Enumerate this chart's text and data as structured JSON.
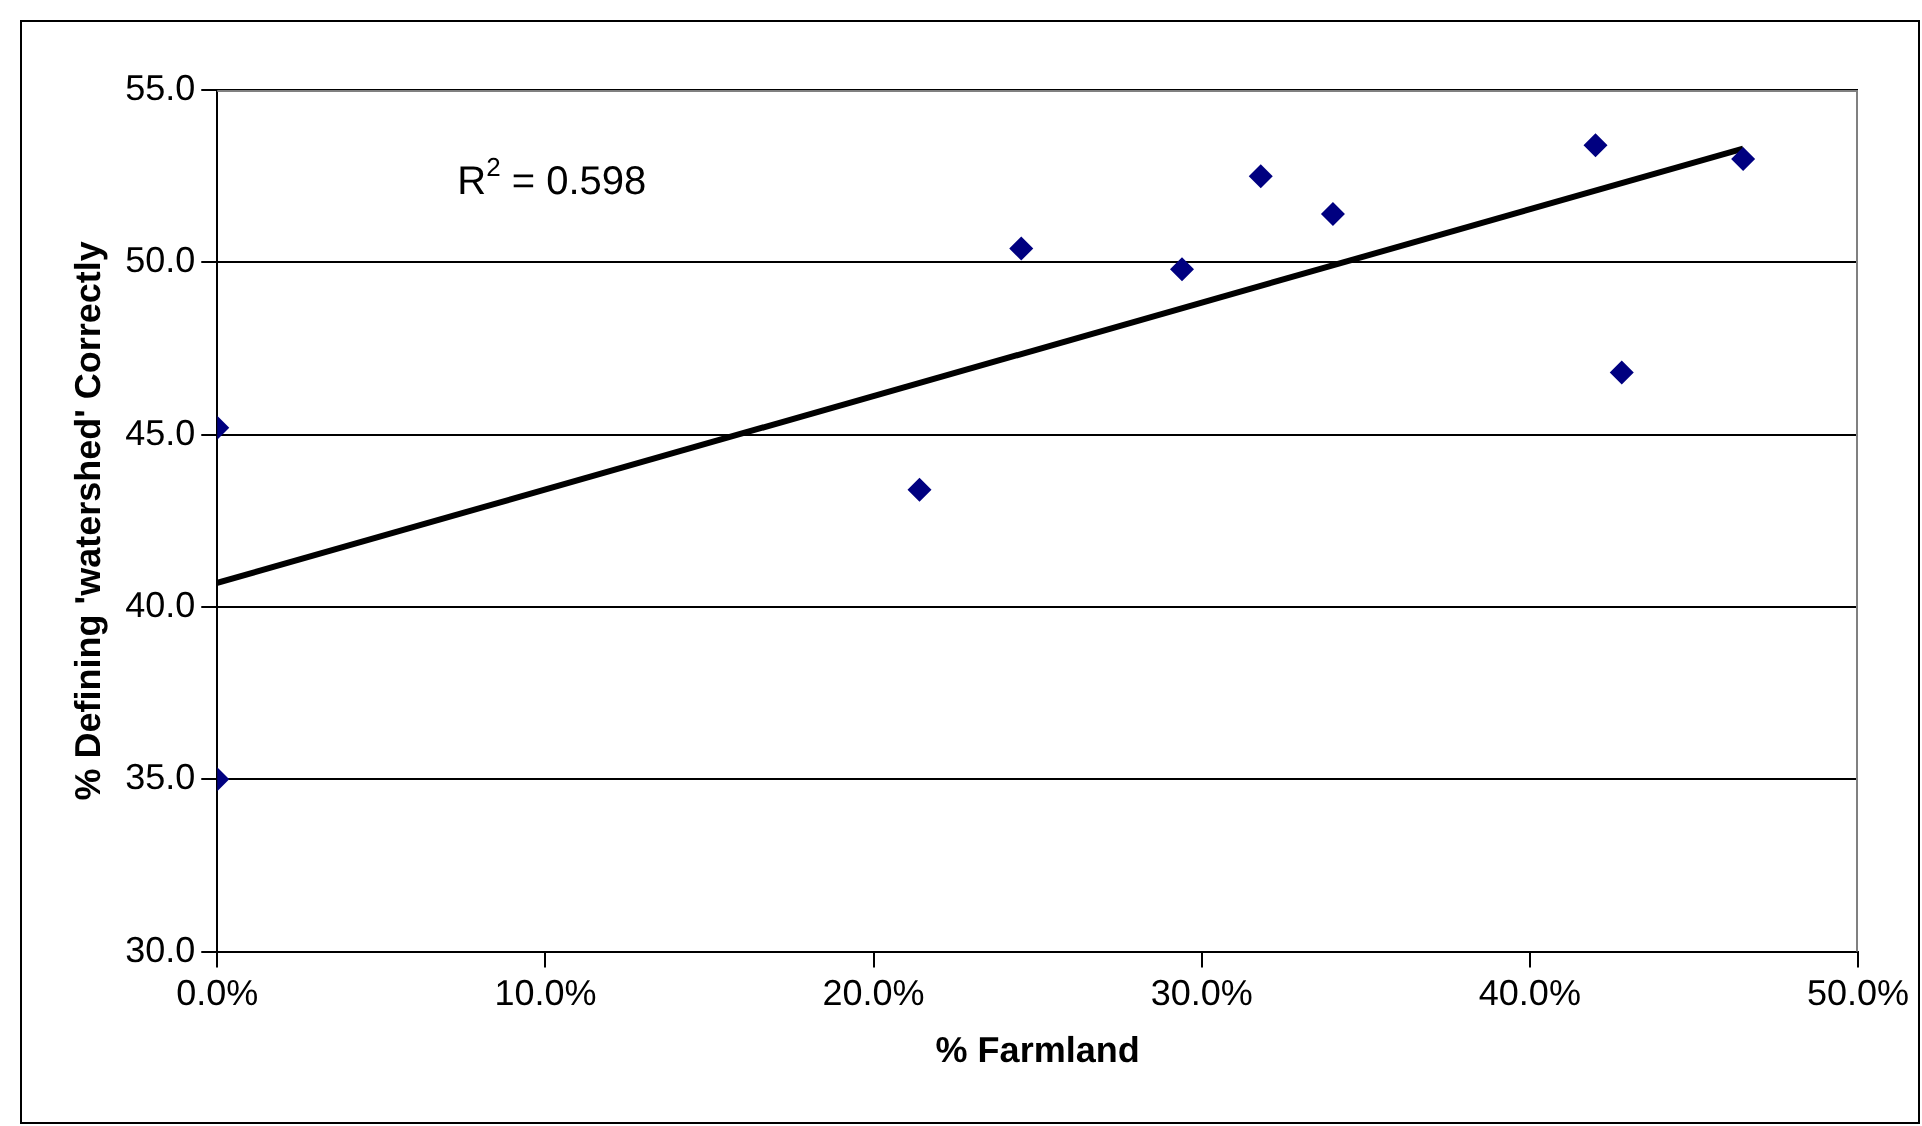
{
  "chart_data": {
    "type": "scatter",
    "xlabel": "% Farmland",
    "ylabel": "% Defining 'watershed' Correctly",
    "annotations": [
      "R$^{2}$ = 0.598"
    ],
    "series": [
      {
        "color": "#000080",
        "marker": "diamond",
        "x": [
          0,
          0,
          21.4,
          24.5,
          29.4,
          31.8,
          34.0,
          42.0,
          42.8,
          46.5
        ],
        "values": [
          45.2,
          35.0,
          43.4,
          50.4,
          49.8,
          52.5,
          51.4,
          53.4,
          46.8,
          53.0
        ]
      },
      {
        "type": "line",
        "color": "#000000",
        "marker": "none",
        "x": [
          0,
          46.5
        ],
        "values": [
          40.7,
          53.3
        ]
      }
    ],
    "xlim": [
      0,
      50
    ],
    "xticks": [
      {
        "value": 0,
        "label": "0.0%"
      },
      {
        "value": 10,
        "label": "10.0%"
      },
      {
        "value": 20,
        "label": "20.0%"
      },
      {
        "value": 30,
        "label": "30.0%"
      },
      {
        "value": 40,
        "label": "40.0%"
      },
      {
        "value": 50,
        "label": "50.0%"
      }
    ],
    "ylim": [
      30,
      55
    ],
    "yticks": [
      {
        "value": 30,
        "label": "30.0"
      },
      {
        "value": 35,
        "label": "35.0"
      },
      {
        "value": 40,
        "label": "40.0"
      },
      {
        "value": 45,
        "label": "45.0"
      },
      {
        "value": 50,
        "label": "50.0"
      },
      {
        "value": 55,
        "label": "55.0"
      }
    ],
    "grid": "y",
    "legend": false
  }
}
